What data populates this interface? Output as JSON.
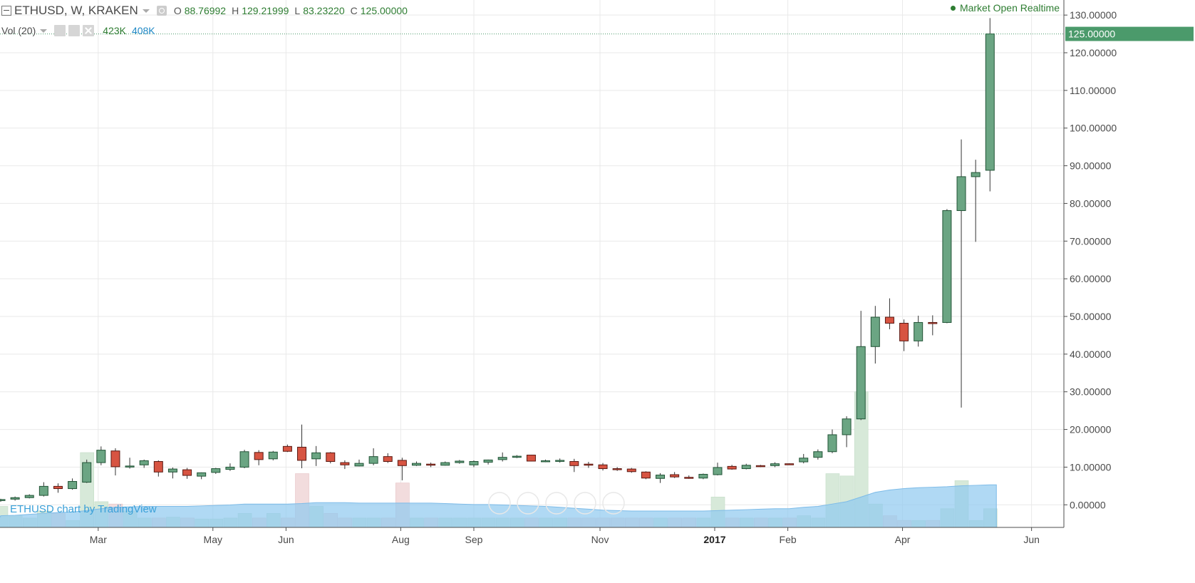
{
  "legend": {
    "symbol": "ETHUSD, W, KRAKEN",
    "o_label": "O",
    "o_value": "88.76992",
    "h_label": "H",
    "h_value": "129.21999",
    "l_label": "L",
    "l_value": "83.23220",
    "c_label": "C",
    "c_value": "125.00000",
    "vol_label": "Vol (20)",
    "vol_value_1": "423K",
    "vol_value_2": "408K"
  },
  "status": "Market Open Realtime",
  "watermark": "ETHUSD chart by TradingView",
  "colors": {
    "up": "#6ba583",
    "up_border": "#225437",
    "down": "#d75442",
    "down_border": "#5b1a13",
    "vol_up": "#d7e9d9",
    "vol_down": "#f2dcdd",
    "vol_ma": "#8fc9ef",
    "last_price_bg": "#4b9a6b"
  },
  "chart_data": {
    "type": "candlestick",
    "title": "ETHUSD, W, KRAKEN",
    "price_axis": {
      "ticks": [
        "130.00000",
        "120.00000",
        "110.00000",
        "100.00000",
        "90.00000",
        "80.00000",
        "70.00000",
        "60.00000",
        "50.00000",
        "40.00000",
        "30.00000",
        "20.00000",
        "10.00000",
        "0.00000"
      ],
      "tick_values": [
        130,
        120,
        110,
        100,
        90,
        80,
        70,
        60,
        50,
        40,
        30,
        20,
        10,
        0
      ],
      "range": [
        -6,
        134
      ],
      "last_price_label": "125.00000",
      "last_price": 125
    },
    "time_axis": {
      "labels": [
        "Mar",
        "May",
        "Jun",
        "Aug",
        "Sep",
        "Nov",
        "2017",
        "Feb",
        "Apr",
        "Jun"
      ],
      "label_bar_index": [
        6.8,
        14.8,
        19.9,
        27.9,
        33.0,
        41.8,
        49.8,
        54.9,
        62.9,
        71.9
      ],
      "bold": [
        "2017"
      ]
    },
    "candles": {
      "fields": [
        "o",
        "h",
        "l",
        "c",
        "v"
      ],
      "data": [
        [
          1.2,
          1.6,
          0.8,
          1.4,
          4.5
        ],
        [
          1.5,
          2.2,
          1.1,
          1.9,
          2.5
        ],
        [
          1.9,
          2.8,
          1.7,
          2.5,
          2.0
        ],
        [
          2.5,
          6.0,
          2.2,
          4.9,
          3.5
        ],
        [
          4.9,
          5.7,
          3.2,
          4.3,
          3.0
        ],
        [
          4.3,
          7.0,
          4.0,
          6.2,
          1.5
        ],
        [
          6.0,
          12.0,
          5.8,
          11.2,
          16.0
        ],
        [
          11.2,
          15.5,
          10.5,
          14.5,
          5.5
        ],
        [
          14.3,
          15.0,
          7.8,
          10.1,
          5.0
        ],
        [
          10.1,
          12.5,
          9.6,
          10.3,
          3.5
        ],
        [
          10.6,
          12.0,
          9.8,
          11.7,
          2.0
        ],
        [
          11.5,
          11.8,
          7.5,
          8.7,
          2.0
        ],
        [
          8.7,
          9.9,
          7.0,
          9.5,
          2.2
        ],
        [
          9.3,
          9.8,
          6.9,
          7.8,
          2.0
        ],
        [
          7.6,
          8.6,
          6.8,
          8.5,
          1.8
        ],
        [
          8.6,
          9.8,
          8.2,
          9.6,
          1.8
        ],
        [
          9.4,
          11.0,
          9.0,
          10.0,
          2.0
        ],
        [
          10.0,
          14.6,
          9.7,
          14.1,
          3.0
        ],
        [
          13.9,
          14.5,
          10.5,
          12.0,
          2.0
        ],
        [
          12.2,
          14.3,
          11.8,
          14.0,
          3.0
        ],
        [
          15.5,
          16.0,
          14.0,
          14.2,
          2.0
        ],
        [
          15.3,
          21.3,
          9.7,
          11.8,
          11.5
        ],
        [
          12.2,
          15.6,
          10.3,
          13.8,
          4.5
        ],
        [
          13.8,
          14.0,
          11.0,
          11.5,
          3.0
        ],
        [
          11.2,
          11.8,
          9.5,
          10.6,
          2.0
        ],
        [
          10.3,
          12.0,
          10.2,
          11.0,
          2.0
        ],
        [
          11.0,
          15.0,
          10.5,
          12.8,
          2.0
        ],
        [
          12.8,
          13.7,
          11.1,
          11.5,
          2.0
        ],
        [
          11.8,
          12.5,
          6.5,
          10.4,
          9.5
        ],
        [
          10.5,
          11.5,
          10.3,
          11.0,
          2.0
        ],
        [
          10.8,
          11.2,
          10.0,
          10.7,
          2.0
        ],
        [
          10.5,
          11.5,
          10.4,
          11.2,
          2.0
        ],
        [
          11.2,
          11.9,
          10.9,
          11.6,
          2.0
        ],
        [
          10.6,
          11.8,
          10.0,
          11.5,
          2.0
        ],
        [
          11.3,
          12.0,
          10.7,
          11.9,
          2.0
        ],
        [
          12.0,
          13.9,
          11.5,
          12.6,
          2.0
        ],
        [
          12.6,
          13.2,
          12.4,
          12.9,
          2.0
        ],
        [
          13.2,
          13.3,
          11.5,
          11.6,
          2.0
        ],
        [
          11.5,
          12.0,
          11.3,
          11.7,
          2.0
        ],
        [
          11.6,
          12.3,
          11.2,
          11.8,
          2.0
        ],
        [
          11.5,
          12.2,
          8.7,
          10.4,
          2.0
        ],
        [
          10.8,
          11.4,
          9.8,
          10.6,
          2.0
        ],
        [
          10.6,
          11.1,
          9.1,
          9.6,
          2.0
        ],
        [
          9.6,
          10.0,
          9.0,
          9.5,
          2.0
        ],
        [
          9.5,
          9.8,
          8.5,
          8.8,
          2.0
        ],
        [
          8.7,
          8.9,
          6.8,
          7.1,
          2.0
        ],
        [
          7.0,
          8.4,
          5.8,
          7.9,
          2.0
        ],
        [
          8.0,
          8.7,
          7.1,
          7.4,
          2.0
        ],
        [
          7.3,
          7.8,
          6.9,
          7.1,
          2.0
        ],
        [
          7.1,
          8.3,
          6.8,
          8.1,
          2.0
        ],
        [
          8.0,
          11.2,
          7.8,
          9.9,
          6.5
        ],
        [
          10.2,
          10.6,
          9.3,
          9.5,
          2.0
        ],
        [
          9.6,
          10.9,
          9.4,
          10.5,
          2.0
        ],
        [
          10.4,
          10.6,
          10.0,
          10.3,
          2.0
        ],
        [
          10.4,
          11.3,
          10.0,
          10.9,
          2.0
        ],
        [
          10.9,
          11.0,
          10.6,
          10.8,
          2.0
        ],
        [
          11.4,
          13.5,
          11.0,
          12.4,
          2.5
        ],
        [
          12.6,
          14.7,
          12.0,
          14.1,
          2.0
        ],
        [
          14.1,
          20.0,
          13.7,
          18.6,
          11.5
        ],
        [
          18.6,
          23.5,
          15.3,
          22.8,
          11.0
        ],
        [
          22.8,
          51.5,
          22.5,
          42.0,
          29.0
        ],
        [
          42.0,
          52.8,
          37.5,
          49.8,
          5.0
        ],
        [
          49.8,
          54.8,
          46.6,
          48.2,
          2.5
        ],
        [
          48.2,
          49.2,
          40.8,
          43.5,
          1.5
        ],
        [
          43.5,
          50.2,
          42.0,
          48.4,
          1.5
        ],
        [
          48.4,
          50.3,
          45.0,
          48.1,
          1.5
        ],
        [
          48.4,
          78.5,
          48.2,
          78.1,
          4.0
        ],
        [
          78.1,
          97.0,
          25.8,
          87.1,
          10.0
        ],
        [
          87.1,
          91.6,
          69.8,
          88.2,
          1.5
        ],
        [
          88.8,
          129.2,
          83.2,
          125.0,
          4.0
        ]
      ],
      "volume_ma": [
        2.5,
        2.6,
        2.8,
        3.0,
        3.2,
        3.3,
        3.6,
        4.0,
        4.3,
        4.4,
        4.5,
        4.5,
        4.5,
        4.5,
        4.6,
        4.7,
        4.8,
        5.0,
        5.0,
        5.0,
        5.0,
        5.1,
        5.3,
        5.3,
        5.3,
        5.2,
        5.2,
        5.2,
        5.2,
        5.2,
        5.2,
        5.1,
        5.0,
        4.9,
        4.9,
        4.8,
        4.7,
        4.6,
        4.5,
        4.3,
        4.1,
        3.9,
        3.7,
        3.6,
        3.5,
        3.5,
        3.5,
        3.5,
        3.5,
        3.5,
        3.6,
        3.7,
        3.8,
        3.9,
        4.0,
        4.0,
        4.3,
        4.5,
        5.0,
        5.5,
        6.5,
        7.5,
        8.0,
        8.3,
        8.5,
        8.6,
        8.7,
        8.9,
        9.0,
        9.1
      ]
    },
    "volume_axis": {
      "max": 32
    }
  }
}
